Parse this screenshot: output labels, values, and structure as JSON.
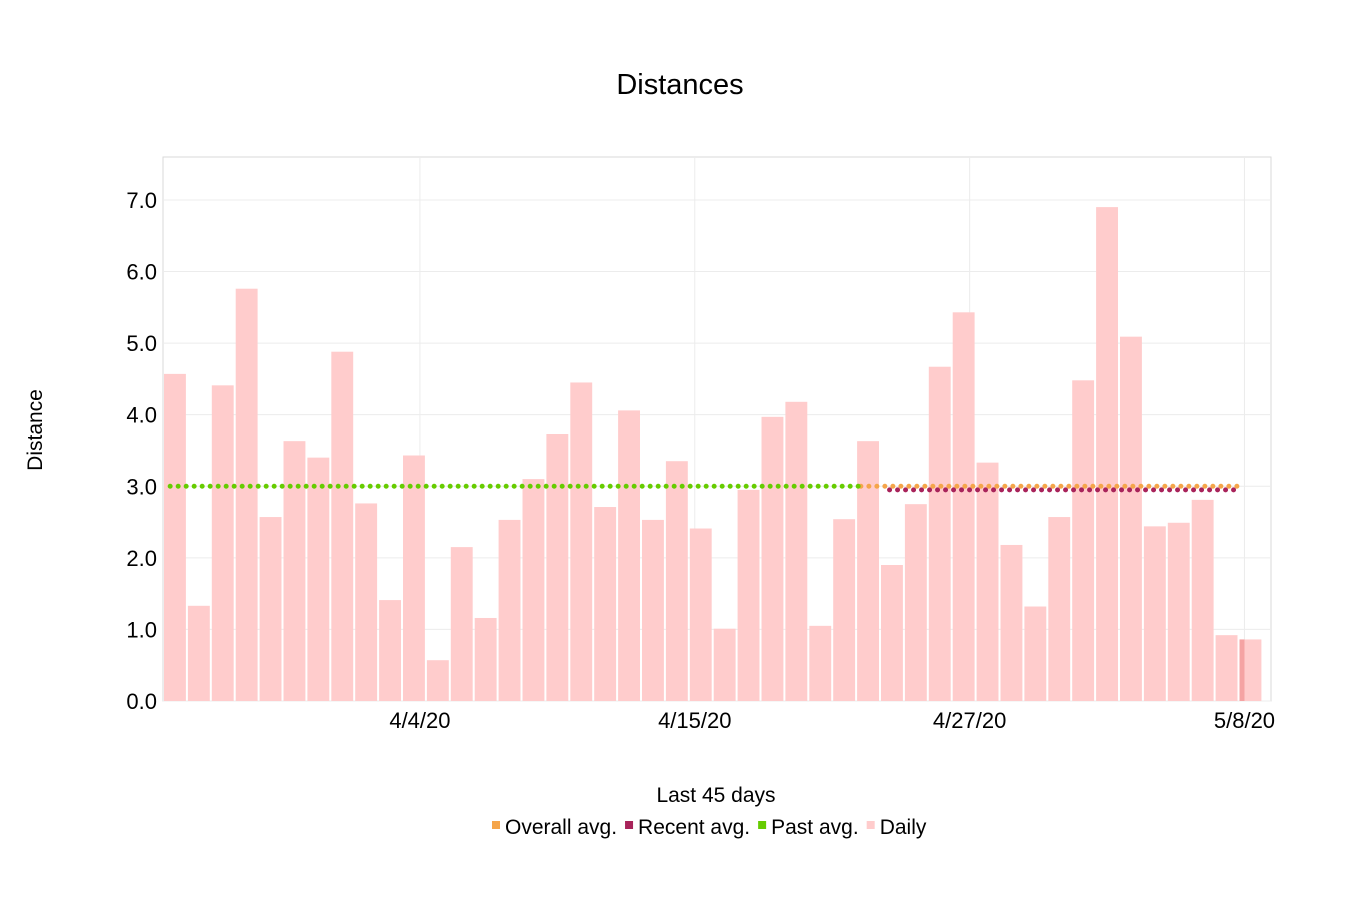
{
  "chart_data": {
    "type": "bar",
    "title": "Distances",
    "xlabel": "Last 45 days",
    "ylabel": "Distance",
    "ylim": [
      0,
      7.6
    ],
    "y_ticks": [
      "0.0",
      "1.0",
      "2.0",
      "3.0",
      "4.0",
      "5.0",
      "6.0",
      "7.0"
    ],
    "x_tick_labels": [
      {
        "day_index": 10.75,
        "label": "4/4/20"
      },
      {
        "day_index": 22.25,
        "label": "4/15/20"
      },
      {
        "day_index": 33.75,
        "label": "4/27/20"
      },
      {
        "day_index": 45.25,
        "label": "5/8/20"
      }
    ],
    "grid": true,
    "legend_position": "bottom",
    "days": 46,
    "series": [
      {
        "name": "Daily",
        "kind": "bar",
        "color": "#ffcccc",
        "values": [
          4.57,
          1.33,
          4.41,
          5.76,
          2.57,
          3.63,
          3.4,
          4.88,
          2.76,
          1.41,
          3.43,
          0.57,
          2.15,
          1.16,
          2.53,
          3.1,
          3.73,
          4.45,
          2.71,
          4.06,
          2.53,
          3.35,
          2.41,
          1.01,
          2.95,
          3.97,
          4.18,
          1.05,
          2.54,
          3.63,
          1.9,
          2.75,
          4.67,
          5.43,
          3.33,
          2.18,
          1.32,
          2.57,
          4.48,
          6.9,
          5.09,
          2.44,
          2.49,
          2.81,
          0.92,
          0.86
        ]
      },
      {
        "name": "Overall avg.",
        "kind": "line",
        "color": "#f5a54a",
        "value": 3.0,
        "from_day": 29.2,
        "to_day": 45
      },
      {
        "name": "Recent avg.",
        "kind": "line",
        "color": "#a8235a",
        "value": 2.95,
        "from_day": 30.4,
        "to_day": 45
      },
      {
        "name": "Past avg.",
        "kind": "line",
        "color": "#66cc00",
        "value": 3.0,
        "from_day": 0.3,
        "to_day": 29.2
      }
    ],
    "highlight_bar_color": "#f5a3a3"
  }
}
